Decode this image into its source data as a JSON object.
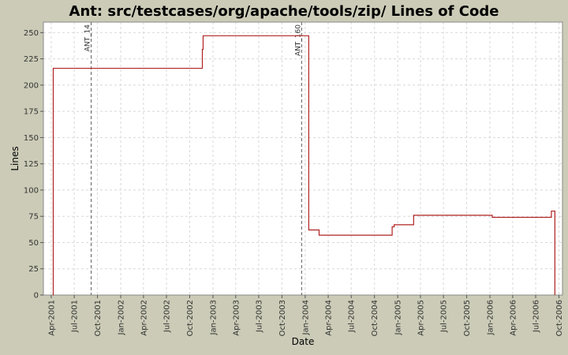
{
  "page": {
    "title": "Ant: src/testcases/org/apache/tools/zip/ Lines of Code"
  },
  "colors": {
    "background": "#cbcbb7",
    "plot_background": "#ffffff",
    "series_line": "#b22222",
    "marker_line": "#606060",
    "gridline": "#d8d8d8"
  },
  "chart_data": {
    "type": "line",
    "title": "Ant: src/testcases/org/apache/tools/zip/ Lines of Code",
    "xlabel": "Date",
    "ylabel": "Lines",
    "xlim": [
      "2001-03-01",
      "2006-10-15"
    ],
    "ylim": [
      0,
      260
    ],
    "grid": true,
    "yticks": [
      0,
      25,
      50,
      75,
      100,
      125,
      150,
      175,
      200,
      225,
      250
    ],
    "xticks": [
      {
        "date": "2001-04-01",
        "label": "Apr-2001"
      },
      {
        "date": "2001-07-01",
        "label": "Jul-2001"
      },
      {
        "date": "2001-10-01",
        "label": "Oct-2001"
      },
      {
        "date": "2002-01-01",
        "label": "Jan-2002"
      },
      {
        "date": "2002-04-01",
        "label": "Apr-2002"
      },
      {
        "date": "2002-07-01",
        "label": "Jul-2002"
      },
      {
        "date": "2002-10-01",
        "label": "Oct-2002"
      },
      {
        "date": "2003-01-01",
        "label": "Jan-2003"
      },
      {
        "date": "2003-04-01",
        "label": "Apr-2003"
      },
      {
        "date": "2003-07-01",
        "label": "Jul-2003"
      },
      {
        "date": "2003-10-01",
        "label": "Oct-2003"
      },
      {
        "date": "2004-01-01",
        "label": "Jan-2004"
      },
      {
        "date": "2004-04-01",
        "label": "Apr-2004"
      },
      {
        "date": "2004-07-01",
        "label": "Jul-2004"
      },
      {
        "date": "2004-10-01",
        "label": "Oct-2004"
      },
      {
        "date": "2005-01-01",
        "label": "Jan-2005"
      },
      {
        "date": "2005-04-01",
        "label": "Apr-2005"
      },
      {
        "date": "2005-07-01",
        "label": "Jul-2005"
      },
      {
        "date": "2005-10-01",
        "label": "Oct-2005"
      },
      {
        "date": "2006-01-01",
        "label": "Jan-2006"
      },
      {
        "date": "2006-04-01",
        "label": "Apr-2006"
      },
      {
        "date": "2006-07-01",
        "label": "Jul-2006"
      },
      {
        "date": "2006-10-01",
        "label": "Oct-2006"
      }
    ],
    "markers": [
      {
        "label": "ANT_14",
        "date": "2001-09-06"
      },
      {
        "label": "ANT_160",
        "date": "2003-12-18"
      }
    ],
    "series": [
      {
        "step": true,
        "points": [
          {
            "x": "2001-04-08",
            "y": 0
          },
          {
            "x": "2001-04-09",
            "y": 216
          },
          {
            "x": "2002-11-20",
            "y": 234
          },
          {
            "x": "2002-11-23",
            "y": 247
          },
          {
            "x": "2004-01-15",
            "y": 62
          },
          {
            "x": "2004-02-25",
            "y": 57
          },
          {
            "x": "2004-12-10",
            "y": 65
          },
          {
            "x": "2004-12-18",
            "y": 67
          },
          {
            "x": "2005-03-05",
            "y": 76
          },
          {
            "x": "2006-01-10",
            "y": 74
          },
          {
            "x": "2006-09-01",
            "y": 80
          },
          {
            "x": "2006-09-15",
            "y": 0
          }
        ]
      }
    ]
  }
}
